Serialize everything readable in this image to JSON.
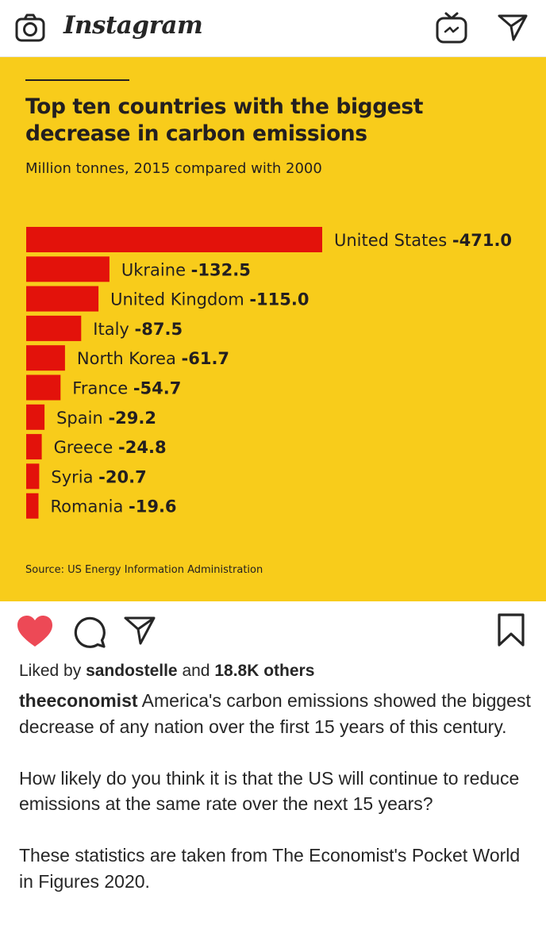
{
  "header": {
    "app_name": "Instagram",
    "icons": {
      "camera": "camera-icon",
      "igtv": "igtv-icon",
      "direct": "direct-message-icon"
    }
  },
  "post_image": {
    "background_color": "#f8cc1b",
    "bar_color": "#e3120b",
    "chart_data": {
      "type": "bar",
      "orientation": "horizontal",
      "title": "Top ten countries with the biggest decrease in carbon emissions",
      "subtitle": "Million tonnes, 2015 compared with 2000",
      "categories": [
        "United States",
        "Ukraine",
        "United Kingdom",
        "Italy",
        "North Korea",
        "France",
        "Spain",
        "Greece",
        "Syria",
        "Romania"
      ],
      "values": [
        -471.0,
        -132.5,
        -115.0,
        -87.5,
        -61.7,
        -54.7,
        -29.2,
        -24.8,
        -20.7,
        -19.6
      ],
      "value_labels": [
        "-471.0",
        "-132.5",
        "-115.0",
        "-87.5",
        "-61.7",
        "-54.7",
        "-29.2",
        "-24.8",
        "-20.7",
        "-19.6"
      ],
      "source": "Source: US Energy Information Administration"
    }
  },
  "actions": {
    "like": "heart-icon",
    "comment": "comment-icon",
    "share": "share-icon",
    "save": "bookmark-icon",
    "liked_color": "#ed4956"
  },
  "likes": {
    "prefix": "Liked by",
    "user": "sandostelle",
    "middle": "and",
    "others": "18.8K others"
  },
  "caption": {
    "username": "theeconomist",
    "text": "America's carbon emissions showed the biggest decrease of any nation over the first 15 years of this century.",
    "paragraph2": "How likely do you think it is that the US will continue to reduce emissions at the same rate over the next 15 years?",
    "paragraph3": "These statistics are taken from The Economist's Pocket World in Figures 2020."
  }
}
